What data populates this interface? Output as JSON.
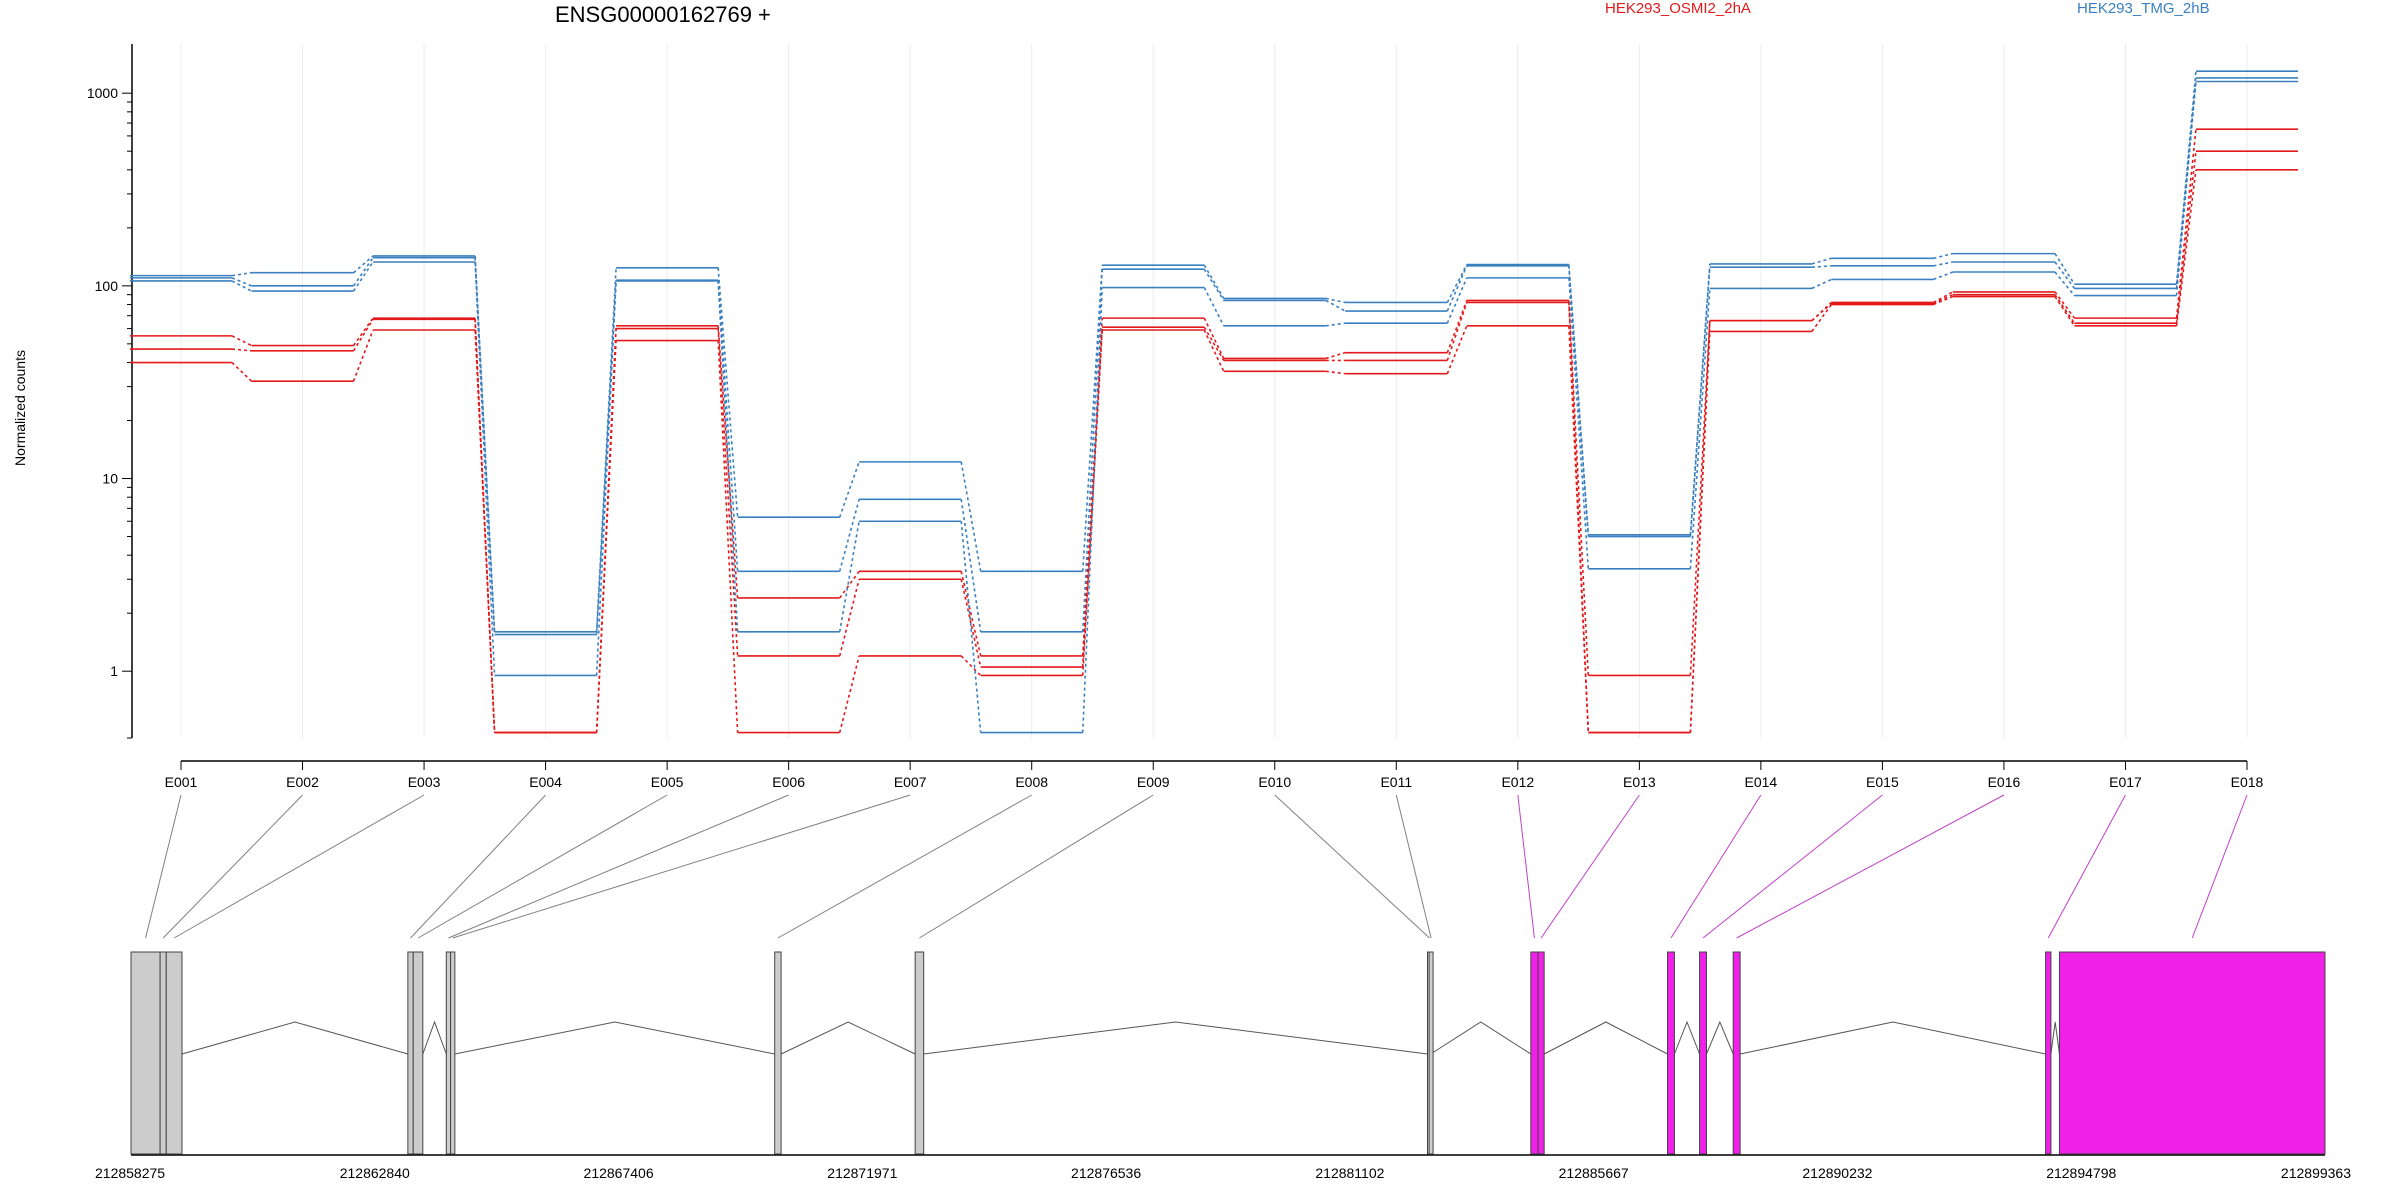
{
  "gene": {
    "title": "ENSG00000162769 +"
  },
  "legend": [
    {
      "name": "HEK293_OSMI2_2hA",
      "color": "#e31a1c"
    },
    {
      "name": "HEK293_TMG_2hB",
      "color": "#3a80c0"
    }
  ],
  "colors": {
    "exon_nonsignificant": "#cccccc",
    "exon_significant": "#f020e8",
    "connector_significant": "#c040c8",
    "connector_default": "#808080"
  },
  "chart_data": {
    "type": "line",
    "y_scale": "log",
    "ylabel": "Normalized counts",
    "xlabel": "",
    "yticks": [
      "1000",
      "100",
      "10",
      "1"
    ],
    "ylim": [
      0.45,
      1800
    ],
    "grid": "vertical",
    "categories": [
      "E001",
      "E002",
      "E003",
      "E004",
      "E005",
      "E006",
      "E007",
      "E008",
      "E009",
      "E010",
      "E011",
      "E012",
      "E013",
      "E014",
      "E015",
      "E016",
      "E017",
      "E018"
    ],
    "series": [
      {
        "name": "HEK293_OSMI2_2hA",
        "group": 0,
        "values": [
          55,
          49,
          68,
          0.48,
          62,
          2.4,
          3.3,
          1.2,
          68,
          42,
          45,
          84,
          0.95,
          66,
          82,
          93,
          68,
          650
        ]
      },
      {
        "name": "HEK293_OSMI2_2hA",
        "group": 0,
        "values": [
          47,
          46,
          67,
          0.48,
          60,
          1.2,
          3.0,
          1.05,
          61,
          41,
          41,
          82,
          0.48,
          66,
          81,
          90,
          64,
          500
        ]
      },
      {
        "name": "HEK293_OSMI2_2hA",
        "group": 0,
        "values": [
          40,
          32,
          59,
          0.48,
          52,
          0.48,
          1.2,
          0.95,
          59,
          36,
          35,
          62,
          0.48,
          58,
          80,
          88,
          62,
          400
        ]
      },
      {
        "name": "HEK293_TMG_2hB",
        "group": 1,
        "values": [
          113,
          117,
          143,
          1.6,
          124,
          6.3,
          12.2,
          3.3,
          128,
          86,
          82,
          129,
          5.1,
          130,
          139,
          147,
          102,
          1300
        ]
      },
      {
        "name": "HEK293_TMG_2hB",
        "group": 1,
        "values": [
          110,
          100,
          140,
          1.55,
          107,
          3.3,
          7.8,
          1.6,
          122,
          84,
          74,
          127,
          5.0,
          125,
          127,
          133,
          97,
          1200
        ]
      },
      {
        "name": "HEK293_TMG_2hB",
        "group": 1,
        "values": [
          106,
          94,
          133,
          0.95,
          106,
          1.6,
          6.0,
          0.48,
          98,
          62,
          64,
          110,
          3.4,
          97,
          108,
          118,
          89,
          1150
        ]
      }
    ],
    "genomic_ticks": [
      "212858275",
      "212862840",
      "212867406",
      "212871971",
      "212876536",
      "212881102",
      "212885667",
      "212890232",
      "212894798",
      "212899363"
    ],
    "genomic_range": [
      212858275,
      212899363
    ],
    "exons": [
      {
        "id": "E001",
        "start": 212858275,
        "end": 212858820,
        "significant": false
      },
      {
        "id": "E002",
        "start": 212858820,
        "end": 212858935,
        "significant": false
      },
      {
        "id": "E003",
        "start": 212858935,
        "end": 212859230,
        "significant": false
      },
      {
        "id": "E004",
        "start": 212863460,
        "end": 212863560,
        "significant": false
      },
      {
        "id": "E005",
        "start": 212863560,
        "end": 212863740,
        "significant": false
      },
      {
        "id": "E006",
        "start": 212864180,
        "end": 212864260,
        "significant": false
      },
      {
        "id": "E007",
        "start": 212864260,
        "end": 212864340,
        "significant": false
      },
      {
        "id": "E008",
        "start": 212870330,
        "end": 212870450,
        "significant": false
      },
      {
        "id": "E009",
        "start": 212872960,
        "end": 212873120,
        "significant": false
      },
      {
        "id": "E010",
        "start": 212882555,
        "end": 212882585,
        "significant": false
      },
      {
        "id": "E011",
        "start": 212882585,
        "end": 212882615,
        "significant": false
      },
      {
        "id": "E012",
        "start": 212884490,
        "end": 212884625,
        "significant": true
      },
      {
        "id": "E013",
        "start": 212884625,
        "end": 212884740,
        "significant": true
      },
      {
        "id": "E014",
        "start": 212887050,
        "end": 212887180,
        "significant": true
      },
      {
        "id": "E015",
        "start": 212887650,
        "end": 212887780,
        "significant": true
      },
      {
        "id": "E016",
        "start": 212888280,
        "end": 212888410,
        "significant": true
      },
      {
        "id": "E017",
        "start": 212894130,
        "end": 212894230,
        "significant": true
      },
      {
        "id": "E018",
        "start": 212894390,
        "end": 212899363,
        "significant": true
      }
    ]
  }
}
